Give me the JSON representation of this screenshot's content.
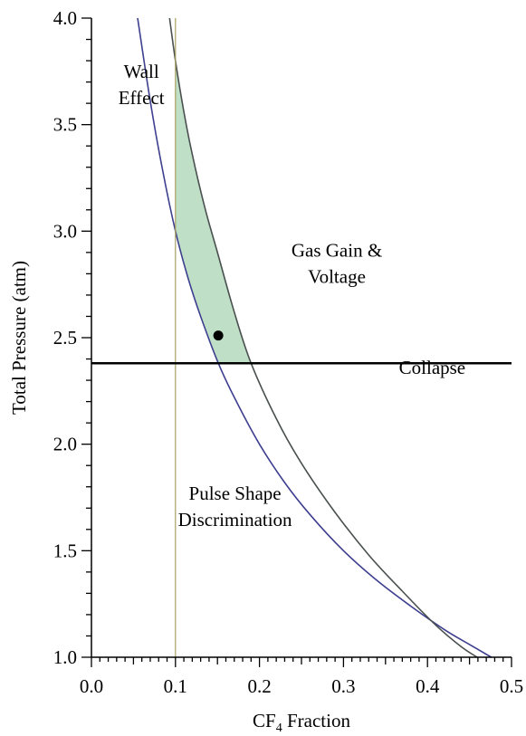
{
  "chart_data": {
    "type": "line",
    "xlabel": "CF",
    "xlabel_sub": "4",
    "xlabel_tail": " Fraction",
    "ylabel": "Total Pressure (atm)",
    "xlim": [
      0.0,
      0.5
    ],
    "ylim": [
      1.0,
      4.0
    ],
    "x_ticks": [
      {
        "value": 0.0,
        "label": "0.0"
      },
      {
        "value": 0.1,
        "label": "0.1"
      },
      {
        "value": 0.2,
        "label": "0.2"
      },
      {
        "value": 0.3,
        "label": "0.3"
      },
      {
        "value": 0.4,
        "label": "0.4"
      },
      {
        "value": 0.5,
        "label": "0.5"
      }
    ],
    "y_ticks": [
      {
        "value": 1.0,
        "label": "1.0"
      },
      {
        "value": 1.5,
        "label": "1.5"
      },
      {
        "value": 2.0,
        "label": "2.0"
      },
      {
        "value": 2.5,
        "label": "2.5"
      },
      {
        "value": 3.0,
        "label": "3.0"
      },
      {
        "value": 3.5,
        "label": "3.5"
      },
      {
        "value": 4.0,
        "label": "4.0"
      }
    ],
    "x_minor_step": 0.01,
    "y_minor_step": 0.1,
    "grid": false,
    "colors": {
      "wall_effect": "#3d3f8f",
      "gas_gain": "#4a5050",
      "psd": "#a8a060",
      "collapse": "#000000",
      "region": "#bfe0c6"
    },
    "series": [
      {
        "key": "wall_effect",
        "x": [
          0.055,
          0.07,
          0.085,
          0.1,
          0.115,
          0.13,
          0.15,
          0.17,
          0.2,
          0.23,
          0.26,
          0.3,
          0.34,
          0.38,
          0.42,
          0.45,
          0.476
        ],
        "y": [
          4.0,
          3.61,
          3.28,
          3.0,
          2.78,
          2.6,
          2.39,
          2.22,
          2.0,
          1.82,
          1.67,
          1.5,
          1.36,
          1.24,
          1.13,
          1.06,
          1.0
        ]
      },
      {
        "key": "gas_gain",
        "x": [
          0.093,
          0.1,
          0.11,
          0.12,
          0.135,
          0.15,
          0.17,
          0.19,
          0.22,
          0.25,
          0.29,
          0.33,
          0.37,
          0.41,
          0.44,
          0.459
        ],
        "y": [
          4.0,
          3.8,
          3.56,
          3.36,
          3.11,
          2.9,
          2.62,
          2.38,
          2.12,
          1.91,
          1.68,
          1.48,
          1.31,
          1.15,
          1.05,
          1.0
        ]
      },
      {
        "key": "psd",
        "x": [
          0.1,
          0.1
        ],
        "y": [
          1.0,
          4.0
        ]
      },
      {
        "key": "collapse",
        "x": [
          0.0,
          0.5
        ],
        "y": [
          2.38,
          2.38
        ]
      }
    ],
    "point": {
      "x": 0.151,
      "y": 2.51
    },
    "annotations": [
      {
        "lines": [
          "Wall",
          "Effect"
        ],
        "x": 0.032,
        "y": 3.72
      },
      {
        "lines": [
          "Gas Gain &",
          "Voltage"
        ],
        "x": 0.238,
        "y": 2.88
      },
      {
        "lines": [
          "Collapse"
        ],
        "x": 0.366,
        "y": 2.33
      },
      {
        "lines": [
          "Pulse Shape",
          "Discrimination"
        ],
        "x": 0.103,
        "y": 1.74
      }
    ]
  }
}
